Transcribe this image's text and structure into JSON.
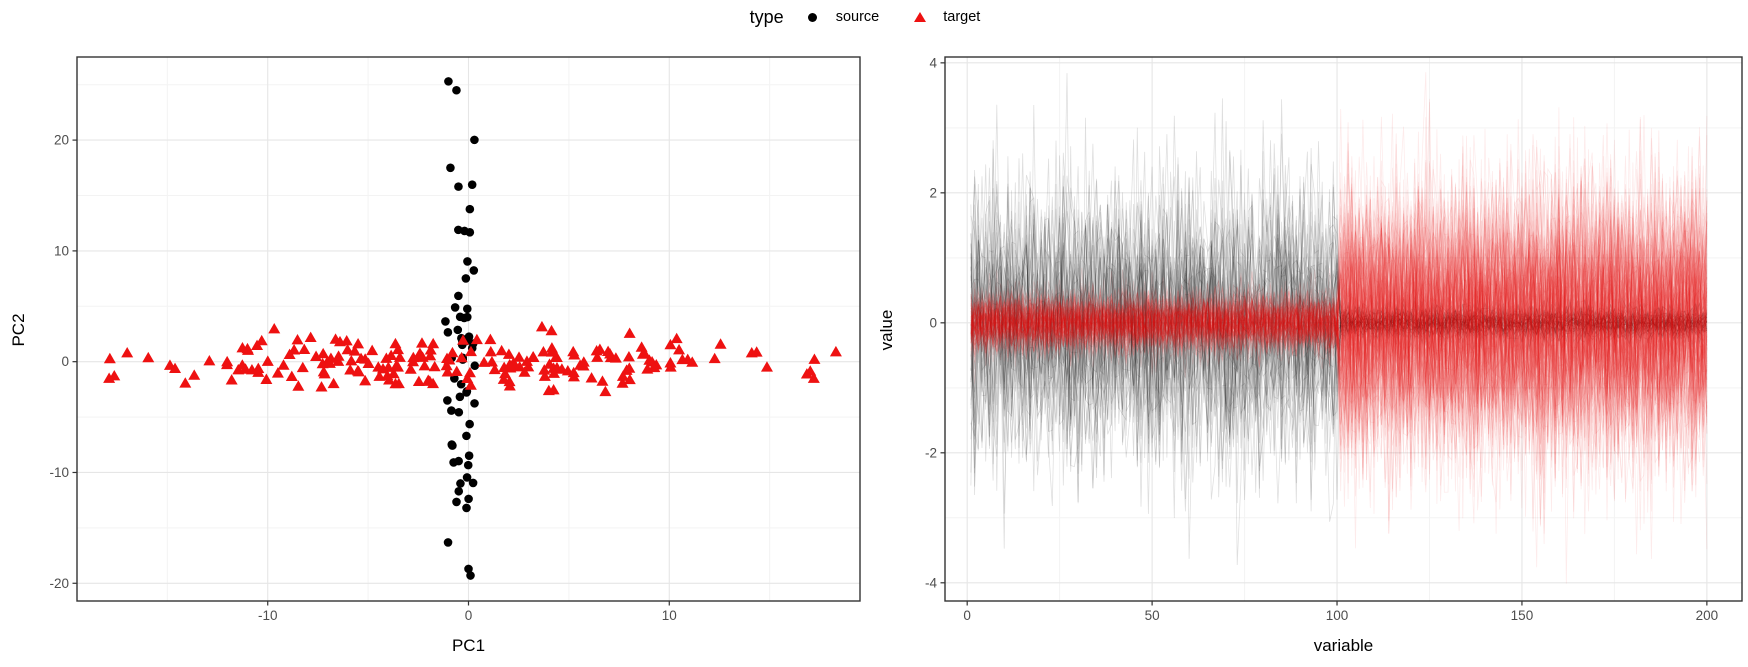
{
  "legend": {
    "title": "type",
    "items": [
      {
        "label": "source",
        "marker": "circle",
        "color": "#000000"
      },
      {
        "label": "target",
        "marker": "triangle",
        "color": "#ee1111"
      }
    ]
  },
  "colors": {
    "background": "#ffffff",
    "panel_border": "#333333",
    "grid_major": "#e6e6e6",
    "grid_minor": "#f3f3f3",
    "tick_label": "#4d4d4d",
    "source": "#000000",
    "target": "#ee1111"
  },
  "chart_data": [
    {
      "type": "scatter",
      "title": "",
      "xlabel": "PC1",
      "ylabel": "PC2",
      "xlim": [
        -19.5,
        19.5
      ],
      "ylim": [
        -21.6,
        27.5
      ],
      "xticks": [
        -10,
        0,
        10
      ],
      "yticks": [
        -20,
        -10,
        0,
        10,
        20
      ],
      "xminor": [
        -15,
        -5,
        5,
        15
      ],
      "yminor": [
        -15,
        -5,
        5,
        15,
        25
      ],
      "grid": true,
      "legend_position": "top-center",
      "seed": 12,
      "series": [
        {
          "name": "source",
          "marker": "circle",
          "color": "#000000",
          "n": 52,
          "dist": {
            "x_mean": -0.3,
            "x_sd": 0.5,
            "x_clip": [
              -1.7,
              1.3
            ],
            "y_mean": 0,
            "y_sd": 9.5,
            "y_clip": [
              -19.4,
              25.4
            ]
          },
          "anchor_points": [
            [
              -1.0,
              25.3
            ],
            [
              -0.6,
              24.5
            ],
            [
              -0.9,
              17.5
            ],
            [
              -0.5,
              15.8
            ],
            [
              -0.2,
              11.8
            ],
            [
              0.1,
              -19.3
            ],
            [
              0.0,
              -18.7
            ],
            [
              -0.1,
              -13.2
            ]
          ]
        },
        {
          "name": "target",
          "marker": "triangle",
          "color": "#ee1111",
          "n": 195,
          "dist": {
            "x_mean": 0,
            "x_sd": 8.0,
            "x_clip": [
              -18.5,
              18.5
            ],
            "y_mean": 0,
            "y_sd": 1.25,
            "y_clip": [
              -3.3,
              3.3
            ]
          },
          "anchor_points": [
            [
              -17.9,
              -1.5
            ],
            [
              -17.0,
              0.8
            ],
            [
              18.3,
              0.9
            ],
            [
              17.2,
              -1.5
            ],
            [
              -10.3,
              1.9
            ],
            [
              4.0,
              -2.6
            ]
          ]
        }
      ]
    },
    {
      "type": "profile-lines",
      "title": "",
      "xlabel": "variable",
      "ylabel": "value",
      "xlim": [
        -6.0,
        209.5
      ],
      "ylim": [
        -4.28,
        4.09
      ],
      "xticks": [
        0,
        50,
        100,
        150,
        200
      ],
      "yticks": [
        -4,
        -2,
        0,
        2,
        4
      ],
      "xminor": [
        25,
        75,
        125,
        175
      ],
      "yminor": [
        -3,
        -1,
        1,
        3
      ],
      "grid": true,
      "x_start": 1,
      "x_end": 200,
      "breakpoint": 100,
      "seed": 77,
      "series": [
        {
          "name": "source",
          "color": "#000000",
          "alpha": 0.13,
          "n_lines": 45,
          "sd_first_half": 1.0,
          "sd_second_half": 0.12
        },
        {
          "name": "target",
          "color": "#e81414",
          "alpha": 0.085,
          "n_lines": 150,
          "sd_first_half": 0.22,
          "sd_second_half": 1.0
        }
      ]
    }
  ]
}
